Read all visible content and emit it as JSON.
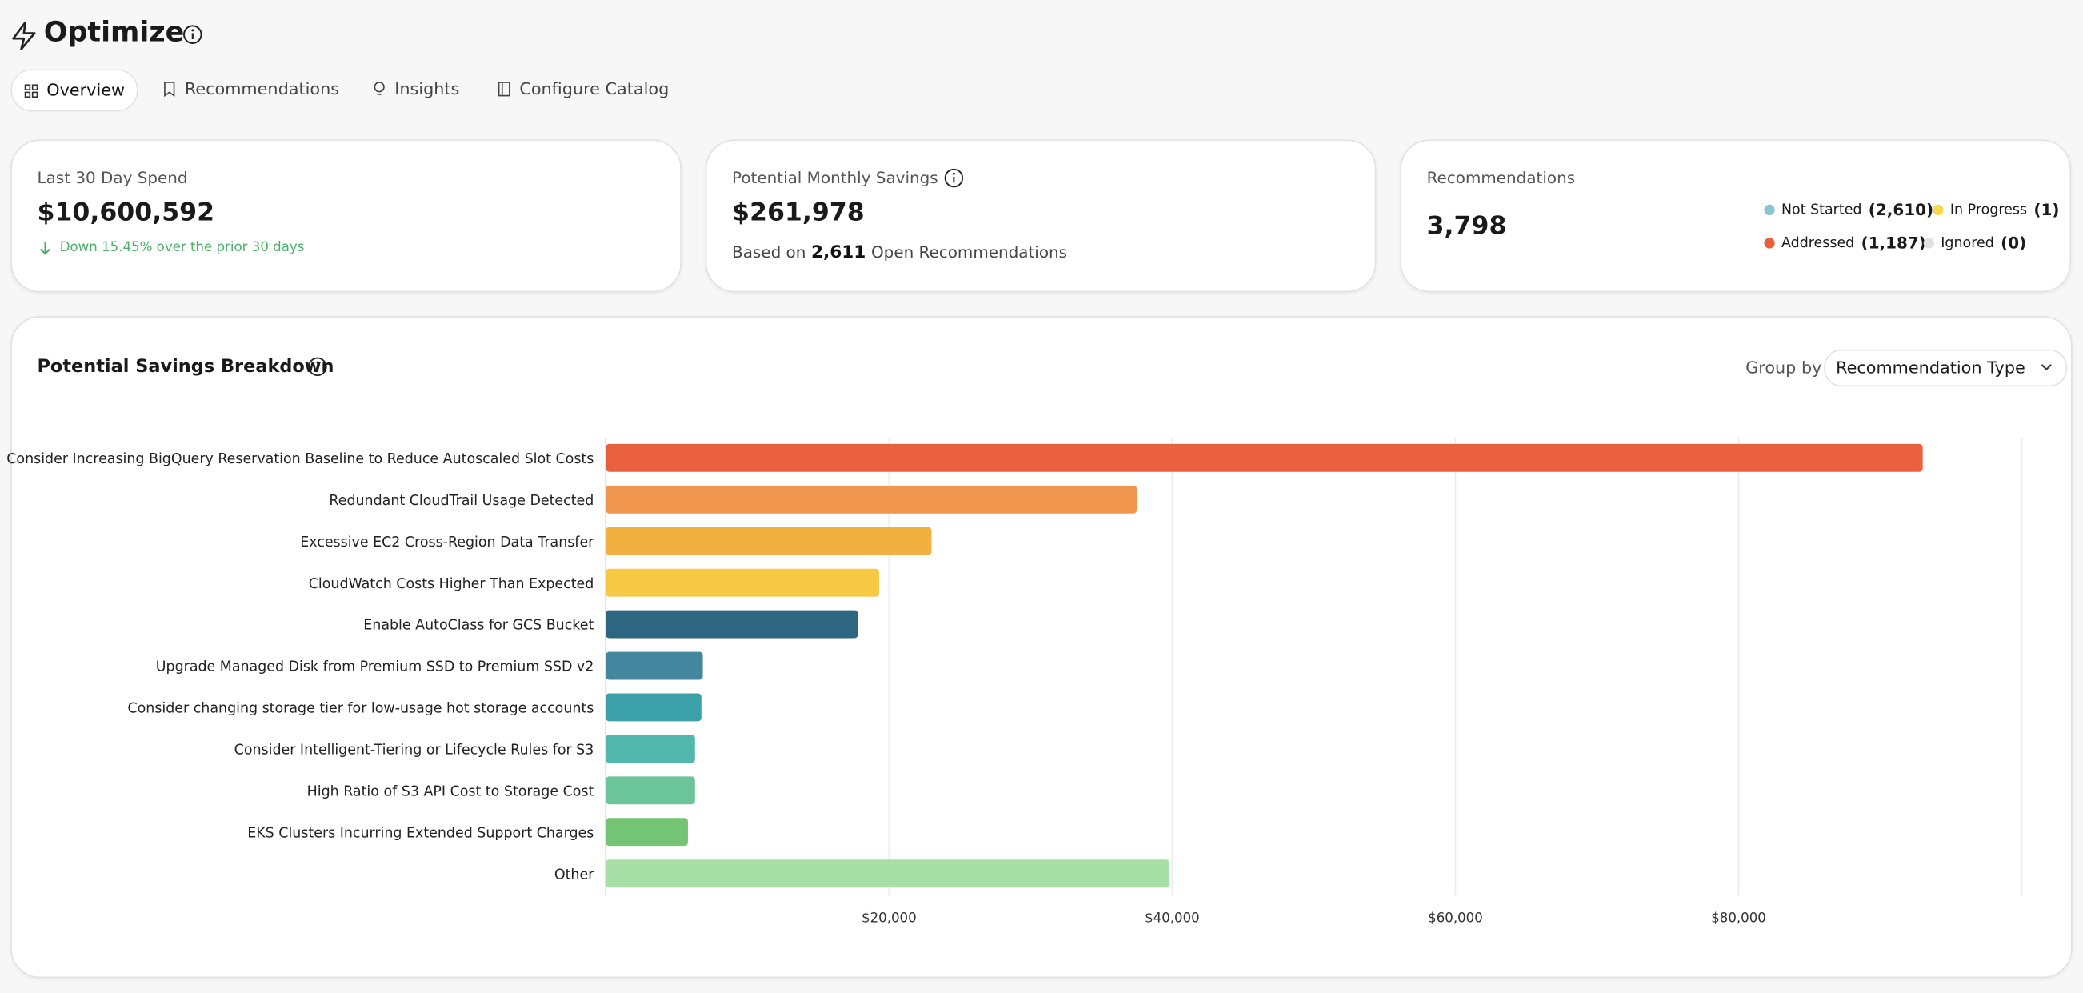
{
  "header": {
    "title": "Optimize"
  },
  "tabs": [
    "Overview",
    "Recommendations",
    "Insights",
    "Configure Catalog"
  ],
  "cards": {
    "spend": {
      "label": "Last 30 Day Spend",
      "value": "$10,600,592",
      "change": "Down 15.45% over the prior 30 days"
    },
    "savings": {
      "label": "Potential Monthly Savings",
      "value": "$261,978",
      "note_prefix": "Based on",
      "note_count": "2,611",
      "note_suffix": "Open Recommendations"
    },
    "recommendations": {
      "label": "Recommendations",
      "value": "3,798",
      "statuses": [
        {
          "name": "Not Started",
          "count": "(2,610)",
          "color": "#8cc4d4"
        },
        {
          "name": "In Progress",
          "count": "(1)",
          "color": "#f5d94a"
        },
        {
          "name": "Addressed",
          "count": "(1,187)",
          "color": "#e8613f"
        },
        {
          "name": "Ignored",
          "count": "(0)",
          "color": "#e2e2e2"
        }
      ]
    }
  },
  "chart_data": {
    "type": "bar",
    "title": "Potential Savings Breakdown",
    "group_by_label": "Group by",
    "group_by_value": "Recommendation Type",
    "categories": [
      "Consider Increasing BigQuery Reservation Baseline to Reduce Autoscaled Slot Costs",
      "Redundant CloudTrail Usage Detected",
      "Excessive EC2 Cross-Region Data Transfer",
      "CloudWatch Costs Higher Than Expected",
      "Enable AutoClass for GCS Bucket",
      "Upgrade Managed Disk from Premium SSD to Premium SSD v2",
      "Consider changing storage tier for low-usage hot storage accounts",
      "Consider Intelligent-Tiering or Lifecycle Rules for S3",
      "High Ratio of S3 API Cost to Storage Cost",
      "EKS Clusters Incurring Extended Support Charges",
      "Other"
    ],
    "values": [
      93000,
      37500,
      23000,
      19300,
      17800,
      6850,
      6750,
      6300,
      6300,
      5800,
      39800
    ],
    "colors": [
      "#e9613f",
      "#f0964f",
      "#f2b041",
      "#f7c843",
      "#2c6680",
      "#43879f",
      "#3ba0a8",
      "#52b7ad",
      "#6bc49a",
      "#74c475",
      "#a7dfa6"
    ],
    "xlim": [
      0,
      100000
    ],
    "xticks": [
      {
        "value": 20000,
        "label": "$20,000"
      },
      {
        "value": 40000,
        "label": "$40,000"
      },
      {
        "value": 60000,
        "label": "$60,000"
      },
      {
        "value": 80000,
        "label": "$80,000"
      }
    ],
    "grid": true
  }
}
